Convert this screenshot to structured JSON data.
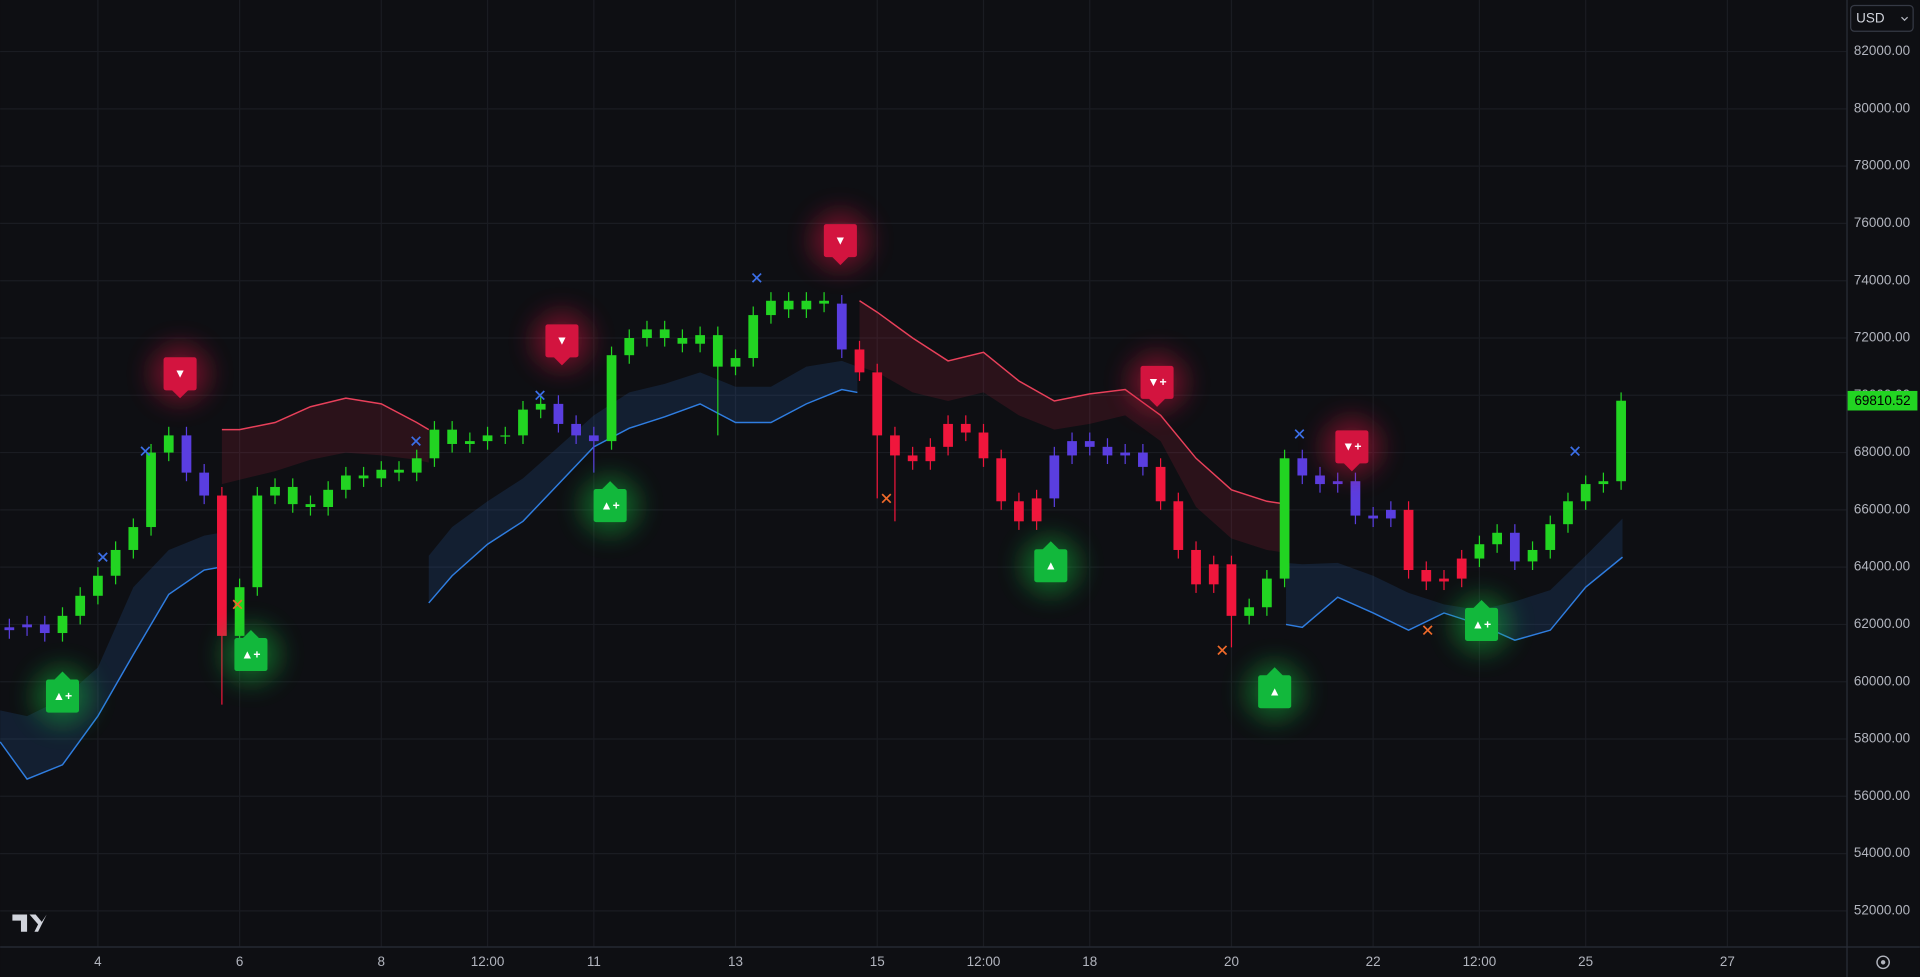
{
  "ui": {
    "currency": "USD"
  },
  "chart_data": {
    "type": "candlestick",
    "xlim": [
      2.62,
      28.68
    ],
    "ylim": [
      50760,
      83800
    ],
    "xticks": [
      4,
      6,
      8,
      {
        "value": 9.5,
        "label": "12:00"
      },
      11,
      13,
      15,
      {
        "value": 16.5,
        "label": "12:00"
      },
      18,
      20,
      22,
      {
        "value": 23.5,
        "label": "12:00"
      },
      25,
      27
    ],
    "yticks": [
      {
        "value": 82000,
        "label": "82000.00"
      },
      {
        "value": 80000,
        "label": "80000.00"
      },
      {
        "value": 78000,
        "label": "78000.00"
      },
      {
        "value": 76000,
        "label": "76000.00"
      },
      {
        "value": 74000,
        "label": "74000.00"
      },
      {
        "value": 72000,
        "label": "72000.00"
      },
      {
        "value": 70000,
        "label": "70000.00"
      },
      {
        "value": 68000,
        "label": "68000.00"
      },
      {
        "value": 66000,
        "label": "66000.00"
      },
      {
        "value": 64000,
        "label": "64000.00"
      },
      {
        "value": 62000,
        "label": "62000.00"
      },
      {
        "value": 60000,
        "label": "60000.00"
      },
      {
        "value": 58000,
        "label": "58000.00"
      },
      {
        "value": 56000,
        "label": "56000.00"
      },
      {
        "value": 54000,
        "label": "54000.00"
      },
      {
        "value": 52000,
        "label": "52000.00"
      }
    ],
    "grid": true,
    "last_price": 69810.52,
    "last_price_color": "#22d422",
    "candles": {
      "x": [
        2.75,
        3,
        3.25,
        3.5,
        3.75,
        4,
        4.25,
        4.5,
        4.75,
        5,
        5.25,
        5.5,
        5.75,
        6,
        6.25,
        6.5,
        6.75,
        7,
        7.25,
        7.5,
        7.75,
        8,
        8.25,
        8.5,
        8.75,
        9,
        9.25,
        9.5,
        9.75,
        10,
        10.25,
        10.5,
        10.75,
        11,
        11.25,
        11.5,
        11.75,
        12,
        12.25,
        12.5,
        12.75,
        13,
        13.25,
        13.5,
        13.75,
        14,
        14.25,
        14.5,
        14.75,
        15,
        15.25,
        15.5,
        15.75,
        16,
        16.25,
        16.5,
        16.75,
        17,
        17.25,
        17.5,
        17.75,
        18,
        18.25,
        18.5,
        18.75,
        19,
        19.25,
        19.5,
        19.75,
        20,
        20.25,
        20.5,
        20.75,
        21,
        21.25,
        21.5,
        21.75,
        22,
        22.25,
        22.5,
        22.75,
        23,
        23.25,
        23.5,
        23.75,
        24,
        24.25,
        24.5,
        24.75,
        25,
        25.25,
        25.5
      ],
      "open": [
        61800,
        61900,
        62000,
        61700,
        62300,
        63000,
        63700,
        64600,
        65400,
        68000,
        68600,
        67300,
        66500,
        61600,
        63300,
        66500,
        66800,
        66200,
        66100,
        66700,
        67200,
        67100,
        67400,
        67300,
        67800,
        68800,
        68300,
        68400,
        68600,
        68600,
        69500,
        69700,
        69000,
        68600,
        68400,
        71400,
        72000,
        72300,
        72000,
        71800,
        72100,
        71000,
        71300,
        72800,
        73300,
        73000,
        73300,
        73200,
        71600,
        70800,
        68600,
        67900,
        67700,
        68200,
        69000,
        68700,
        67800,
        66300,
        65600,
        66400,
        67900,
        68400,
        68200,
        67900,
        68000,
        67500,
        66300,
        64600,
        63400,
        64100,
        62300,
        62600,
        63600,
        67800,
        67200,
        66900,
        67000,
        65800,
        65700,
        66000,
        63900,
        63500,
        63600,
        64300,
        64800,
        65200,
        64200,
        64600,
        65500,
        66300,
        66900,
        67000
      ],
      "high": [
        62200,
        62300,
        62300,
        62600,
        63300,
        64000,
        64900,
        65700,
        68300,
        68900,
        68900,
        67600,
        66800,
        63600,
        66800,
        67100,
        67100,
        66500,
        67000,
        67500,
        67500,
        67700,
        67700,
        68100,
        69100,
        69100,
        68700,
        68900,
        68900,
        69800,
        70000,
        70000,
        69300,
        68900,
        71700,
        72300,
        72600,
        72600,
        72300,
        72400,
        72400,
        71600,
        73100,
        73600,
        73600,
        73600,
        73600,
        73500,
        71900,
        71100,
        68900,
        68200,
        68500,
        69300,
        69300,
        69000,
        68100,
        66600,
        66700,
        68200,
        68700,
        68700,
        68500,
        68300,
        68300,
        67800,
        66600,
        64900,
        64400,
        64400,
        62900,
        63900,
        68100,
        68100,
        67500,
        67300,
        67300,
        66100,
        66300,
        66300,
        64200,
        63900,
        64600,
        65100,
        65500,
        65500,
        64900,
        65800,
        66600,
        67200,
        67300,
        70100
      ],
      "low": [
        61500,
        61600,
        61400,
        61400,
        62000,
        62700,
        63400,
        64300,
        65100,
        67700,
        67000,
        66200,
        59200,
        61300,
        63000,
        66200,
        65900,
        65800,
        65800,
        66400,
        66800,
        66800,
        67000,
        67000,
        67500,
        68000,
        68000,
        68100,
        68300,
        68300,
        69200,
        68700,
        68300,
        67300,
        68100,
        71100,
        71700,
        71700,
        71500,
        71500,
        68600,
        70700,
        71000,
        72500,
        72700,
        72700,
        72900,
        71300,
        70500,
        66400,
        65600,
        67400,
        67400,
        67900,
        68400,
        67500,
        66000,
        65300,
        65300,
        66100,
        67600,
        67900,
        67600,
        67600,
        67200,
        66000,
        64300,
        63100,
        63100,
        61200,
        62000,
        62300,
        63300,
        66900,
        66600,
        66600,
        65500,
        65400,
        65400,
        63600,
        63200,
        63200,
        63300,
        64000,
        64500,
        63900,
        63900,
        64300,
        65200,
        66000,
        66600,
        66700
      ],
      "close": [
        61900,
        62000,
        61700,
        62300,
        63000,
        63700,
        64600,
        65400,
        68000,
        68600,
        67300,
        66500,
        61600,
        63300,
        66500,
        66800,
        66200,
        66100,
        66700,
        67200,
        67100,
        67400,
        67300,
        67800,
        68800,
        68300,
        68400,
        68600,
        68600,
        69500,
        69700,
        69000,
        68600,
        68400,
        71400,
        72000,
        72300,
        72000,
        71800,
        72100,
        71000,
        71300,
        72800,
        73300,
        73000,
        73300,
        73200,
        71600,
        70800,
        68600,
        67900,
        67700,
        68200,
        69000,
        68700,
        67800,
        66300,
        65600,
        66400,
        67900,
        68400,
        68200,
        67900,
        68000,
        67500,
        66300,
        64600,
        63400,
        64100,
        62300,
        62600,
        63600,
        67800,
        67200,
        66900,
        67000,
        65800,
        65700,
        66000,
        63900,
        63500,
        63600,
        64300,
        64800,
        65200,
        64200,
        64600,
        65500,
        66300,
        66900,
        67000,
        69810.52
      ],
      "colors": [
        "#5a3ee0",
        "#5a3ee0",
        "#5a3ee0",
        "#22d422",
        "#22d422",
        "#22d422",
        "#22d422",
        "#22d422",
        "#22d422",
        "#22d422",
        "#5a3ee0",
        "#5a3ee0",
        "#f0163c",
        "#22d422",
        "#22d422",
        "#22d422",
        "#22d422",
        "#22d422",
        "#22d422",
        "#22d422",
        "#22d422",
        "#22d422",
        "#22d422",
        "#22d422",
        "#22d422",
        "#22d422",
        "#22d422",
        "#22d422",
        "#22d422",
        "#22d422",
        "#22d422",
        "#5a3ee0",
        "#5a3ee0",
        "#5a3ee0",
        "#22d422",
        "#22d422",
        "#22d422",
        "#22d422",
        "#22d422",
        "#22d422",
        "#22d422",
        "#22d422",
        "#22d422",
        "#22d422",
        "#22d422",
        "#22d422",
        "#22d422",
        "#5a3ee0",
        "#f0163c",
        "#f0163c",
        "#f0163c",
        "#f0163c",
        "#f0163c",
        "#f0163c",
        "#f0163c",
        "#f0163c",
        "#f0163c",
        "#f0163c",
        "#f0163c",
        "#5a3ee0",
        "#5a3ee0",
        "#5a3ee0",
        "#5a3ee0",
        "#5a3ee0",
        "#5a3ee0",
        "#f0163c",
        "#f0163c",
        "#f0163c",
        "#f0163c",
        "#f0163c",
        "#22d422",
        "#22d422",
        "#22d422",
        "#5a3ee0",
        "#5a3ee0",
        "#5a3ee0",
        "#5a3ee0",
        "#5a3ee0",
        "#5a3ee0",
        "#f0163c",
        "#f0163c",
        "#f0163c",
        "#f0163c",
        "#22d422",
        "#22d422",
        "#5a3ee0",
        "#22d422",
        "#22d422",
        "#22d422",
        "#22d422",
        "#22d422",
        "#22d422"
      ]
    },
    "bands": [
      {
        "color": "#2f7de0",
        "fill": "rgba(40,90,160,0.22)",
        "x": [
          2.62,
          3,
          3.5,
          4,
          4.5,
          5,
          5.5,
          5.73
        ],
        "line": [
          57900,
          56600,
          57100,
          58800,
          60950,
          63050,
          63900,
          64000
        ],
        "inner": [
          59000,
          58800,
          59400,
          60500,
          63300,
          64600,
          65100,
          65200
        ]
      },
      {
        "color": "#e8405a",
        "fill": "rgba(200,40,70,0.16)",
        "x": [
          5.75,
          6,
          6.5,
          7,
          7.5,
          8,
          8.5,
          8.67
        ],
        "line": [
          68800,
          68800,
          69050,
          69600,
          69900,
          69700,
          69050,
          68800
        ],
        "inner": [
          66900,
          67050,
          67350,
          67750,
          68000,
          67900,
          67750,
          67650
        ]
      },
      {
        "color": "#2f7de0",
        "fill": "rgba(40,90,160,0.22)",
        "x": [
          8.67,
          9,
          9.5,
          10,
          10.5,
          11,
          11.5,
          12,
          12.5,
          13,
          13.5,
          14,
          14.5,
          14.72
        ],
        "line": [
          62750,
          63700,
          64800,
          65600,
          66900,
          68200,
          68850,
          69250,
          69700,
          69050,
          69050,
          69700,
          70200,
          70100
        ],
        "inner": [
          64400,
          65400,
          66300,
          67100,
          68200,
          69300,
          70100,
          70400,
          70800,
          70300,
          70300,
          71000,
          71200,
          71000
        ]
      },
      {
        "color": "#e8405a",
        "fill": "rgba(200,40,70,0.16)",
        "x": [
          14.75,
          15,
          15.5,
          16,
          16.5,
          17,
          17.5,
          18,
          18.5,
          19,
          19.5,
          20,
          20.5,
          20.77
        ],
        "line": [
          73300,
          72900,
          72000,
          71200,
          71500,
          70500,
          69800,
          70050,
          70200,
          69300,
          67800,
          66700,
          66300,
          66200
        ],
        "inner": [
          71000,
          70800,
          70100,
          69800,
          70100,
          69300,
          68800,
          69000,
          69300,
          68400,
          66100,
          65000,
          64600,
          64500
        ]
      },
      {
        "color": "#2f7de0",
        "fill": "rgba(40,90,160,0.22)",
        "x": [
          20.77,
          21,
          21.5,
          22,
          22.5,
          23,
          23.5,
          24,
          24.5,
          25,
          25.52
        ],
        "line": [
          62000,
          61900,
          62950,
          62400,
          61800,
          62400,
          62000,
          61450,
          61800,
          63300,
          64350
        ],
        "inner": [
          64150,
          64100,
          64150,
          63700,
          63100,
          62700,
          62500,
          62800,
          63200,
          64400,
          65700
        ]
      }
    ],
    "signals": [
      {
        "x": 5.16,
        "value": 70750,
        "label": "▼",
        "color": "#d3143f",
        "direction": "down"
      },
      {
        "x": 10.55,
        "value": 71900,
        "label": "▼",
        "color": "#d3143f",
        "direction": "down"
      },
      {
        "x": 14.48,
        "value": 75400,
        "label": "▼",
        "color": "#d3143f",
        "direction": "down"
      },
      {
        "x": 18.95,
        "value": 70450,
        "label": "▼+",
        "color": "#d3143f",
        "direction": "down"
      },
      {
        "x": 21.7,
        "value": 68200,
        "label": "▼+",
        "color": "#d3143f",
        "direction": "down"
      },
      {
        "x": 3.5,
        "value": 59500,
        "label": "▲+",
        "color": "#12b83c",
        "direction": "up"
      },
      {
        "x": 6.16,
        "value": 60950,
        "label": "▲+",
        "color": "#12b83c",
        "direction": "up"
      },
      {
        "x": 11.23,
        "value": 66150,
        "label": "▲+",
        "color": "#12b83c",
        "direction": "up"
      },
      {
        "x": 17.45,
        "value": 64050,
        "label": "▲",
        "color": "#12b83c",
        "direction": "up"
      },
      {
        "x": 20.61,
        "value": 59650,
        "label": "▲",
        "color": "#12b83c",
        "direction": "up"
      },
      {
        "x": 23.53,
        "value": 62000,
        "label": "▲+",
        "color": "#12b83c",
        "direction": "up"
      }
    ],
    "markers": [
      {
        "color": "#3b6fe8",
        "x": [
          4.07,
          4.67,
          8.49,
          10.24,
          13.3,
          20.96,
          24.85
        ],
        "values": [
          64350,
          68050,
          68400,
          70000,
          74100,
          68650,
          68050
        ]
      },
      {
        "color": "#f06a2a",
        "x": [
          5.97,
          15.13,
          19.87,
          22.77
        ],
        "values": [
          62700,
          66400,
          61100,
          61800
        ]
      }
    ]
  }
}
